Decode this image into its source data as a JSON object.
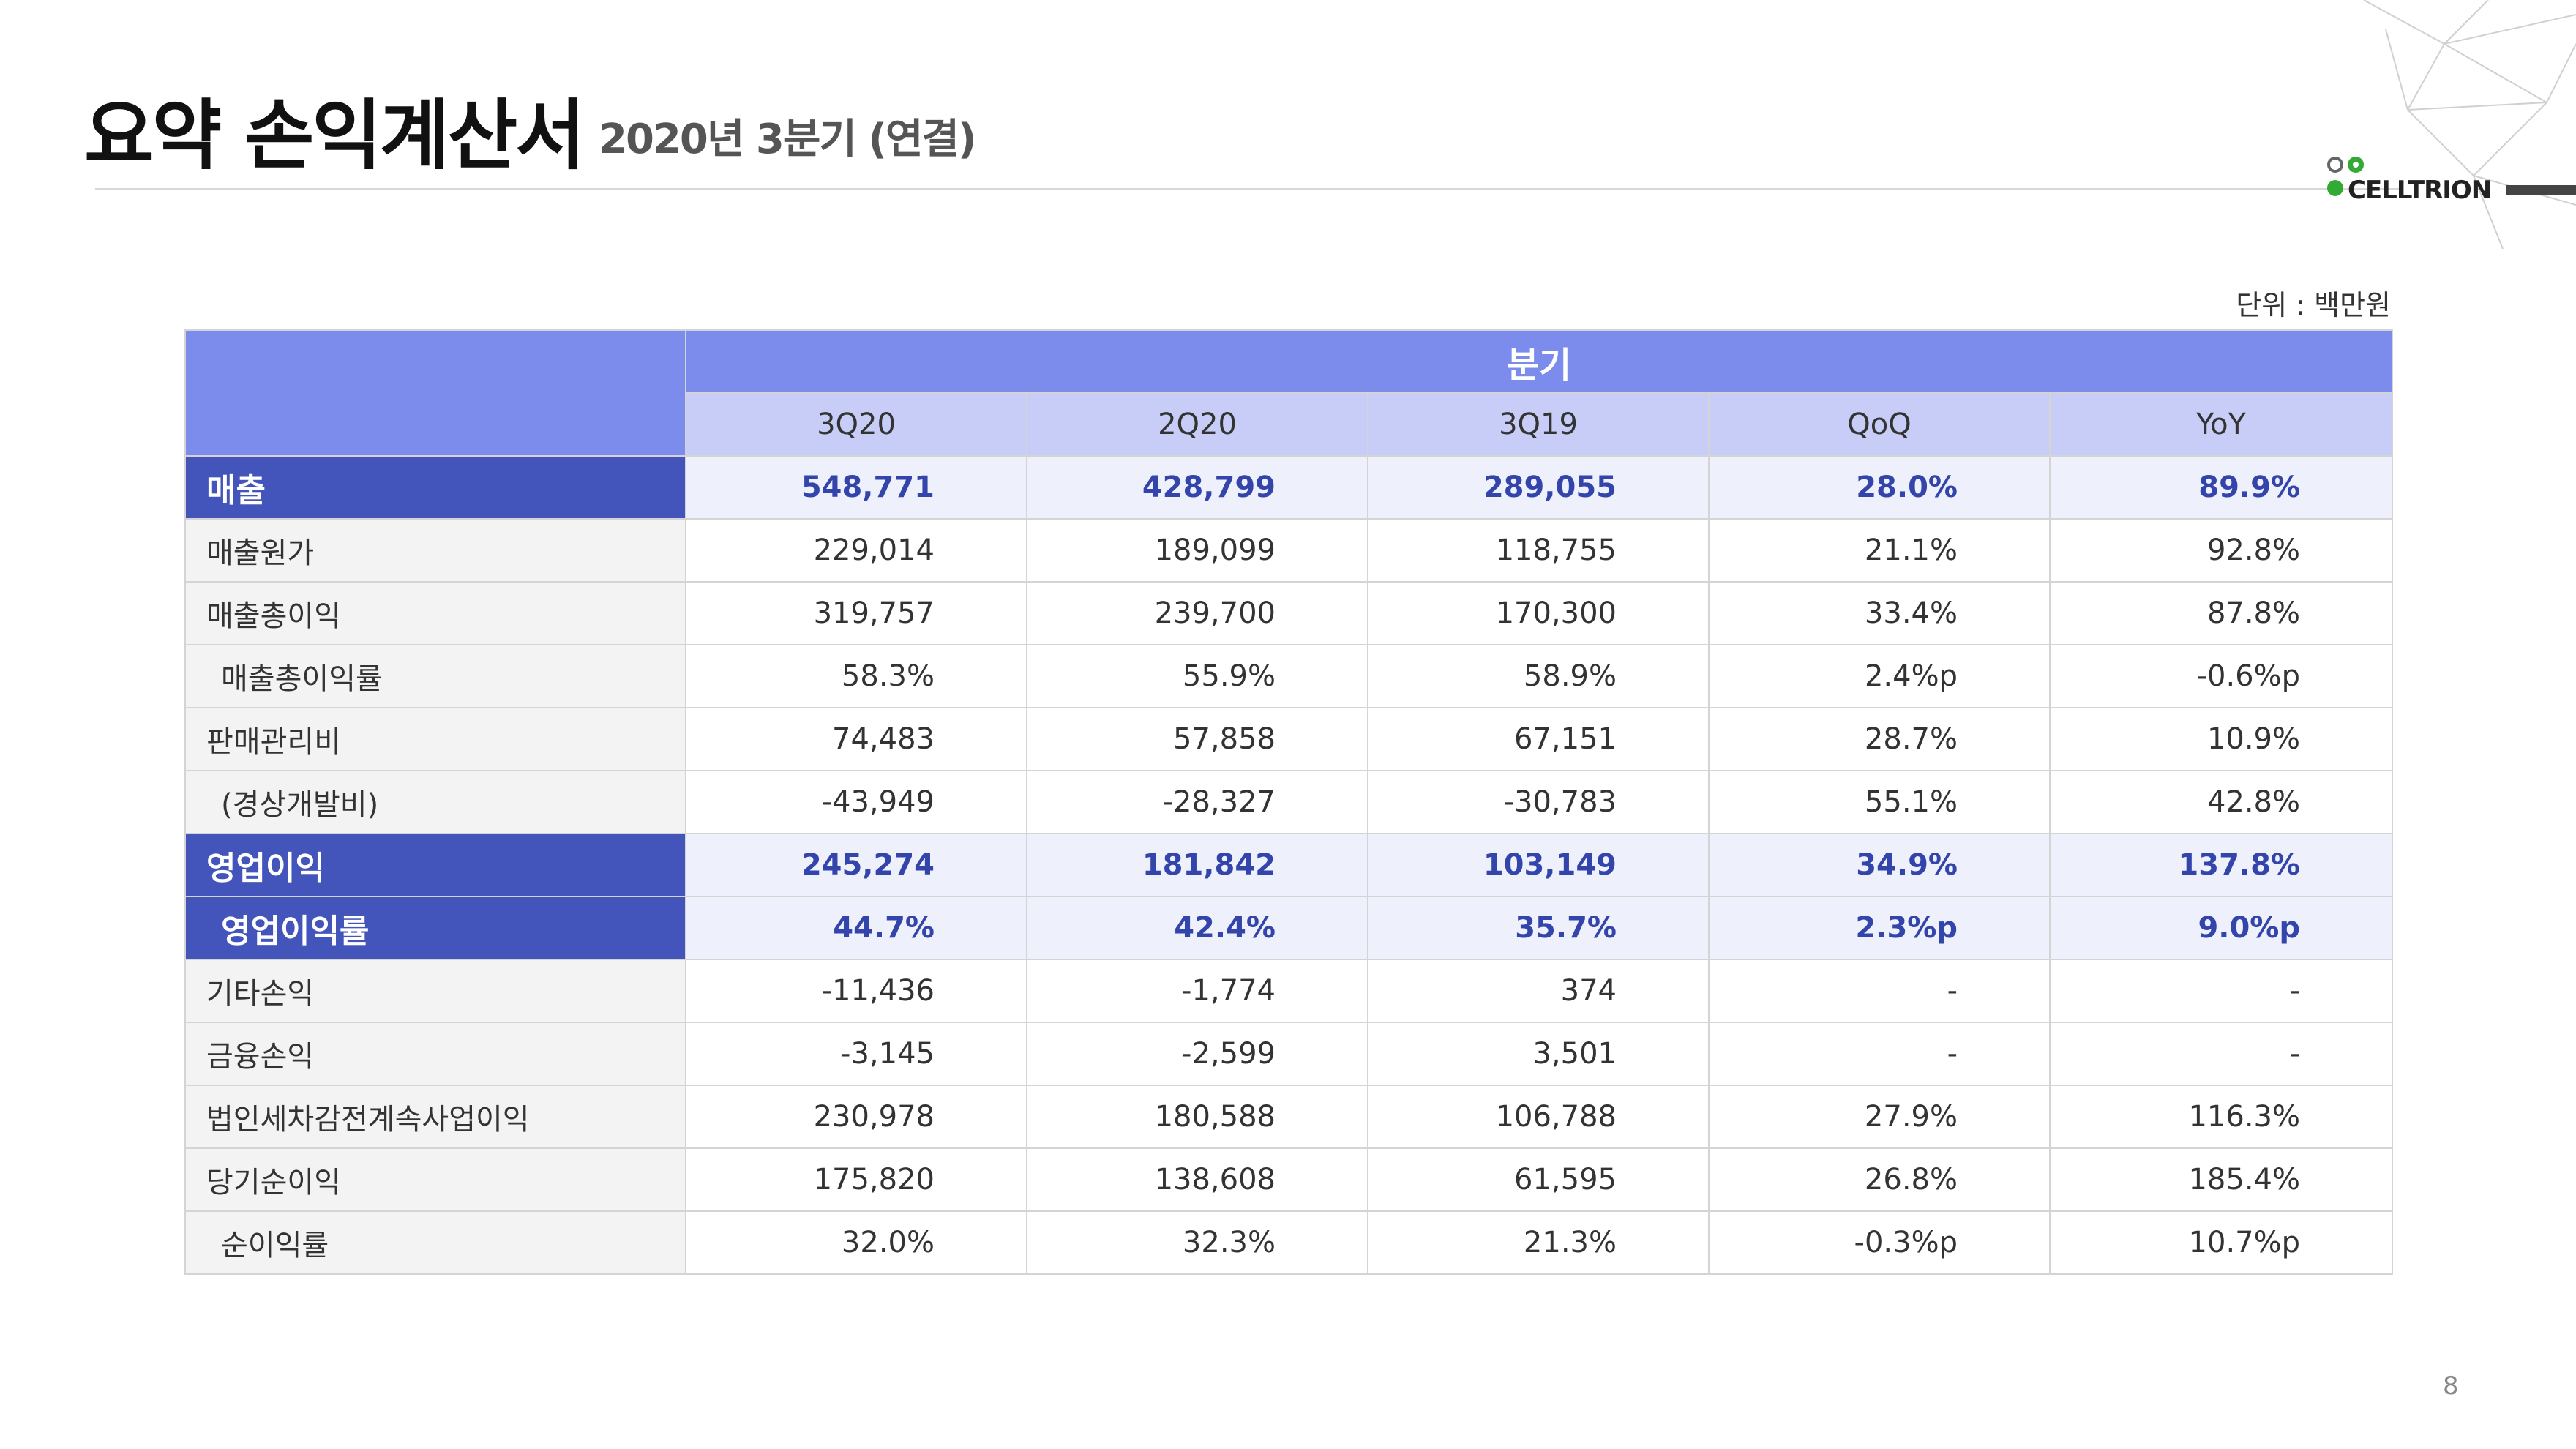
{
  "header": {
    "title": "요약 손익계산서",
    "subtitle": "2020년 3분기 (연결)",
    "brand": "CELLTRION"
  },
  "unit_label": "단위 : 백만원",
  "page_number": "8",
  "colors": {
    "header_blue": "#7b8ced",
    "subheader_blue": "#c7cdf6",
    "highlight_label": "#4355bb",
    "highlight_marker": "#6ee87a",
    "brand_green": "#33aa33"
  },
  "table": {
    "group_header": "분기",
    "columns": [
      "3Q20",
      "2Q20",
      "3Q19",
      "QoQ",
      "YoY"
    ],
    "rows": [
      {
        "label": "매출",
        "values": [
          "548,771",
          "428,799",
          "289,055",
          "28.0%",
          "89.9%"
        ]
      },
      {
        "label": "매출원가",
        "values": [
          "229,014",
          "189,099",
          "118,755",
          "21.1%",
          "92.8%"
        ]
      },
      {
        "label": "매출총이익",
        "values": [
          "319,757",
          "239,700",
          "170,300",
          "33.4%",
          "87.8%"
        ]
      },
      {
        "label": "매출총이익률",
        "values": [
          "58.3%",
          "55.9%",
          "58.9%",
          "2.4%p",
          "-0.6%p"
        ]
      },
      {
        "label": "판매관리비",
        "values": [
          "74,483",
          "57,858",
          "67,151",
          "28.7%",
          "10.9%"
        ]
      },
      {
        "label": "(경상개발비)",
        "values": [
          "-43,949",
          "-28,327",
          "-30,783",
          "55.1%",
          "42.8%"
        ]
      },
      {
        "label": "영업이익",
        "values": [
          "245,274",
          "181,842",
          "103,149",
          "34.9%",
          "137.8%"
        ]
      },
      {
        "label": "영업이익률",
        "values": [
          "44.7%",
          "42.4%",
          "35.7%",
          "2.3%p",
          "9.0%p"
        ]
      },
      {
        "label": "기타손익",
        "values": [
          "-11,436",
          "-1,774",
          "374",
          "-",
          "-"
        ]
      },
      {
        "label": "금융손익",
        "values": [
          "-3,145",
          "-2,599",
          "3,501",
          "-",
          "-"
        ]
      },
      {
        "label": "법인세차감전계속사업이익",
        "values": [
          "230,978",
          "180,588",
          "106,788",
          "27.9%",
          "116.3%"
        ]
      },
      {
        "label": "당기순이익",
        "values": [
          "175,820",
          "138,608",
          "61,595",
          "26.8%",
          "185.4%"
        ]
      },
      {
        "label": "순이익률",
        "values": [
          "32.0%",
          "32.3%",
          "21.3%",
          "-0.3%p",
          "10.7%p"
        ]
      }
    ]
  }
}
